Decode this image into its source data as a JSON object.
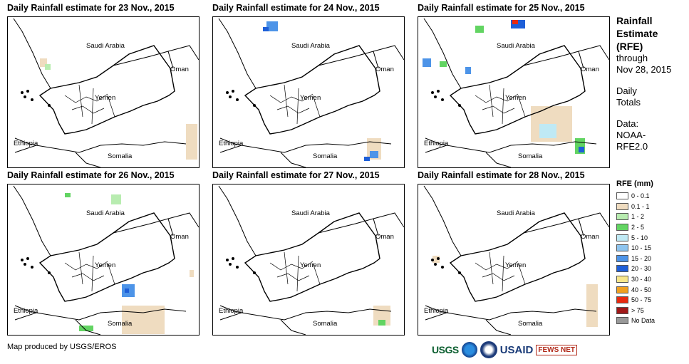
{
  "panels": [
    {
      "title": "Daily Rainfall estimate for 23 Nov., 2015"
    },
    {
      "title": "Daily Rainfall estimate for 24 Nov., 2015"
    },
    {
      "title": "Daily Rainfall estimate for 25 Nov., 2015"
    },
    {
      "title": "Daily Rainfall estimate for 26 Nov., 2015"
    },
    {
      "title": "Daily Rainfall estimate for 27 Nov., 2015"
    },
    {
      "title": "Daily Rainfall estimate for 28 Nov., 2015"
    }
  ],
  "labels": {
    "saudi": "Saudi Arabia",
    "oman": "Oman",
    "yemen": "Yemen",
    "ethiopia": "Ethiopia",
    "somalia": "Somalia"
  },
  "side": {
    "title1": "Rainfall",
    "title2": "Estimate",
    "title3": "(RFE)",
    "through": "through",
    "date": "Nov 28, 2015",
    "daily": "Daily",
    "totals": "Totals",
    "data": "Data:",
    "source1": "NOAA-",
    "source2": "RFE2.0"
  },
  "legend": {
    "title": "RFE (mm)",
    "items": [
      {
        "label": "0 - 0.1",
        "color": "#ffffff"
      },
      {
        "label": "0.1 - 1",
        "color": "#efdcc0"
      },
      {
        "label": "1 - 2",
        "color": "#b8ecb0"
      },
      {
        "label": "2 - 5",
        "color": "#62d462"
      },
      {
        "label": "5 - 10",
        "color": "#bfe9f4"
      },
      {
        "label": "10 - 15",
        "color": "#8ec4ee"
      },
      {
        "label": "15 - 20",
        "color": "#4d94e8"
      },
      {
        "label": "20 - 30",
        "color": "#1e5fd8"
      },
      {
        "label": "30 - 40",
        "color": "#f8e68a"
      },
      {
        "label": "40 - 50",
        "color": "#f0a020"
      },
      {
        "label": "50 - 75",
        "color": "#e82a10"
      },
      {
        "label": "> 75",
        "color": "#a01818"
      },
      {
        "label": "No Data",
        "color": "#999999"
      }
    ]
  },
  "credit": "Map produced by USGS/EROS",
  "logos": {
    "usgs": "USGS",
    "usaid": "USAID",
    "fews": "FEWS NET"
  }
}
